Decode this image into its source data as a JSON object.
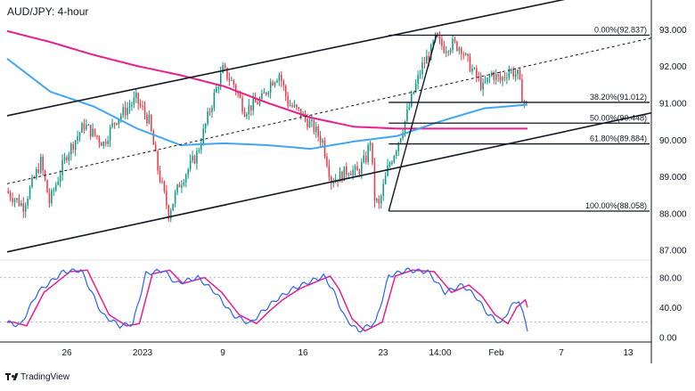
{
  "title": "AUD/JPY: 4-hour",
  "brand": "TradingView",
  "chart_data": {
    "type": "candlestick",
    "price_axis": {
      "ticks": [
        "93.000",
        "92.000",
        "91.000",
        "90.000",
        "89.000",
        "88.000",
        "87.000"
      ],
      "values": [
        93,
        92,
        91,
        90,
        89,
        88,
        87
      ],
      "ylim": [
        86.8,
        93.6
      ]
    },
    "time_axis": {
      "ticks": [
        "26",
        "2023",
        "9",
        "16",
        "23",
        "14:00",
        "Feb",
        "7",
        "13"
      ]
    },
    "fib_levels": [
      {
        "label": "0.00%(92.837)",
        "value": 92.837
      },
      {
        "label": "38.20%(91.012)",
        "value": 91.012
      },
      {
        "label": "50.00%(90.448)",
        "value": 90.448
      },
      {
        "label": "61.80%(89.884)",
        "value": 89.884
      },
      {
        "label": "100.00%(88.058)",
        "value": 88.058
      }
    ],
    "anchors": [
      [
        0,
        88.6
      ],
      [
        8,
        88.2
      ],
      [
        16,
        89.4
      ],
      [
        20,
        88.3
      ],
      [
        28,
        89.6
      ],
      [
        36,
        90.4
      ],
      [
        45,
        89.9
      ],
      [
        50,
        90.5
      ],
      [
        60,
        91.1
      ],
      [
        66,
        90.5
      ],
      [
        70,
        89.2
      ],
      [
        75,
        88.0
      ],
      [
        80,
        88.8
      ],
      [
        88,
        89.6
      ],
      [
        96,
        91.2
      ],
      [
        100,
        91.9
      ],
      [
        105,
        91.5
      ],
      [
        110,
        90.8
      ],
      [
        118,
        91.1
      ],
      [
        122,
        91.55
      ],
      [
        126,
        91.8
      ],
      [
        130,
        91.0
      ],
      [
        136,
        90.7
      ],
      [
        142,
        90.3
      ],
      [
        146,
        89.95
      ],
      [
        150,
        88.9
      ],
      [
        154,
        89.0
      ],
      [
        158,
        89.2
      ],
      [
        162,
        89.1
      ],
      [
        166,
        89.5
      ],
      [
        168,
        90.0
      ],
      [
        170,
        88.4
      ],
      [
        172,
        88.2
      ],
      [
        176,
        89.2
      ],
      [
        180,
        89.8
      ],
      [
        184,
        90.5
      ],
      [
        188,
        91.3
      ],
      [
        192,
        92.0
      ],
      [
        196,
        92.4
      ],
      [
        198,
        92.75
      ],
      [
        202,
        92.5
      ],
      [
        206,
        92.6
      ],
      [
        210,
        92.5
      ],
      [
        212,
        92.2
      ],
      [
        216,
        91.8
      ],
      [
        220,
        91.4
      ],
      [
        224,
        91.8
      ],
      [
        228,
        91.6
      ],
      [
        232,
        91.9
      ],
      [
        236,
        91.75
      ],
      [
        238,
        91.2
      ],
      [
        240,
        90.9
      ]
    ],
    "candle_count": 240,
    "sma_100": [
      [
        0,
        92.2
      ],
      [
        20,
        91.3
      ],
      [
        40,
        90.9
      ],
      [
        60,
        90.3
      ],
      [
        80,
        89.85
      ],
      [
        100,
        89.9
      ],
      [
        120,
        89.85
      ],
      [
        140,
        89.75
      ],
      [
        160,
        89.95
      ],
      [
        180,
        90.1
      ],
      [
        200,
        90.5
      ],
      [
        220,
        90.85
      ],
      [
        240,
        90.95
      ]
    ],
    "sma_200": [
      [
        0,
        92.95
      ],
      [
        20,
        92.65
      ],
      [
        40,
        92.3
      ],
      [
        60,
        92.0
      ],
      [
        80,
        91.75
      ],
      [
        100,
        91.45
      ],
      [
        120,
        91.0
      ],
      [
        140,
        90.6
      ],
      [
        160,
        90.35
      ],
      [
        180,
        90.3
      ],
      [
        200,
        90.3
      ],
      [
        220,
        90.3
      ],
      [
        240,
        90.3
      ]
    ],
    "channel_upper": [
      [
        0,
        90.65
      ],
      [
        240,
        93.6
      ]
    ],
    "channel_lower": [
      [
        0,
        86.95
      ],
      [
        240,
        90.0
      ]
    ],
    "channel_mid": [
      [
        0,
        88.8
      ],
      [
        240,
        92.0
      ]
    ],
    "stoch_axis": {
      "ticks": [
        "80.00",
        "40.00",
        "0.00"
      ],
      "values": [
        80,
        40,
        0
      ],
      "levels": [
        80,
        20
      ],
      "ylim": [
        -2,
        100
      ]
    },
    "stoch_anchors": [
      [
        0,
        20
      ],
      [
        6,
        15
      ],
      [
        14,
        60
      ],
      [
        26,
        88
      ],
      [
        34,
        90
      ],
      [
        44,
        30
      ],
      [
        52,
        15
      ],
      [
        58,
        18
      ],
      [
        64,
        85
      ],
      [
        72,
        90
      ],
      [
        78,
        72
      ],
      [
        88,
        80
      ],
      [
        96,
        60
      ],
      [
        104,
        30
      ],
      [
        112,
        18
      ],
      [
        118,
        35
      ],
      [
        124,
        50
      ],
      [
        132,
        65
      ],
      [
        140,
        75
      ],
      [
        146,
        82
      ],
      [
        150,
        65
      ],
      [
        156,
        25
      ],
      [
        162,
        8
      ],
      [
        170,
        20
      ],
      [
        176,
        82
      ],
      [
        184,
        90
      ],
      [
        194,
        88
      ],
      [
        202,
        60
      ],
      [
        210,
        70
      ],
      [
        216,
        55
      ],
      [
        222,
        30
      ],
      [
        228,
        18
      ],
      [
        232,
        40
      ],
      [
        236,
        50
      ],
      [
        240,
        10
      ]
    ],
    "colors": {
      "up": "#089981",
      "down": "#f23645",
      "sma_100": "#42a5f5",
      "sma_200": "#e91e8c",
      "stoch_k": "#2962ff",
      "stoch_d": "#e91e8c",
      "lines": "#131722",
      "grid": "#b2b5be"
    }
  }
}
